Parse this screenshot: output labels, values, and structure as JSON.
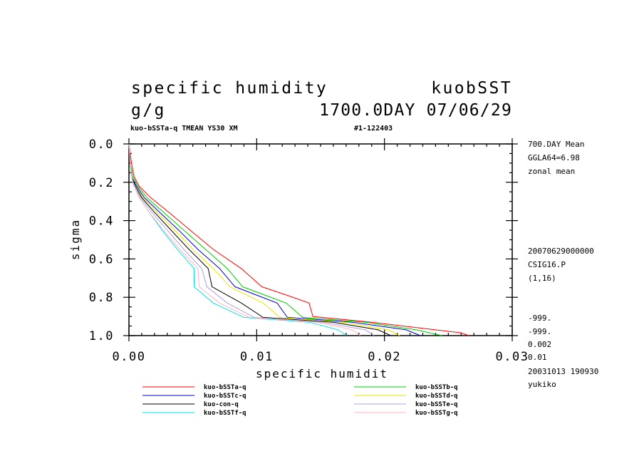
{
  "header": {
    "title_left": "specific humidity",
    "title_right": "kuobSST",
    "units": "g/g",
    "time_label": "1700.0DAY 07/06/29",
    "subtitle_left": "kuo-bSSTa-q TMEAN YS30 XM",
    "subtitle_right": "#1-122403"
  },
  "side_info": {
    "top": [
      "700.DAY Mean",
      "GGLA64=6.98",
      "zonal mean"
    ],
    "middle": [
      "20070629000000",
      "CSIG16.P",
      "(1,16)"
    ],
    "bottom": [
      "-999.",
      "-999.",
      "0.002",
      "0.01",
      "20031013 190930",
      "yukiko"
    ]
  },
  "chart_data": {
    "type": "line",
    "xlabel": "specific humidit",
    "ylabel": "sigma",
    "xlim": [
      0,
      0.03
    ],
    "ylim": [
      0,
      1.0
    ],
    "y_inverted": true,
    "x_ticks": [
      0,
      0.01,
      0.02,
      0.03
    ],
    "x_tick_labels": [
      "0.00",
      "0.01",
      "0.02",
      "0.03"
    ],
    "y_ticks": [
      0,
      0.2,
      0.4,
      0.6,
      0.8,
      1.0
    ],
    "y_tick_labels": [
      "0.0",
      "0.2",
      "0.4",
      "0.6",
      "0.8",
      "1.0"
    ],
    "legend_placement": "bottom",
    "series": [
      {
        "name": "kuo-bSSTa-q",
        "color": "#ff0000",
        "sigma": [
          0.0,
          0.1,
          0.17,
          0.22,
          0.28,
          0.35,
          0.45,
          0.55,
          0.65,
          0.745,
          0.79,
          0.83,
          0.9,
          0.93,
          0.97,
          0.985,
          1.0
        ],
        "q": [
          0.0,
          0.0002,
          0.0004,
          0.0008,
          0.0017,
          0.003,
          0.0048,
          0.0066,
          0.0088,
          0.0104,
          0.0124,
          0.0141,
          0.0144,
          0.019,
          0.024,
          0.026,
          0.0266
        ]
      },
      {
        "name": "kuo-bSSTb-q",
        "color": "#00cc00",
        "sigma": [
          0.0,
          0.1,
          0.17,
          0.22,
          0.28,
          0.35,
          0.45,
          0.55,
          0.65,
          0.745,
          0.83,
          0.905,
          0.93,
          0.97,
          1.0
        ],
        "q": [
          0.0,
          0.0001,
          0.0003,
          0.0007,
          0.0014,
          0.0026,
          0.0043,
          0.006,
          0.0077,
          0.0089,
          0.0123,
          0.0136,
          0.0185,
          0.0225,
          0.0245
        ]
      },
      {
        "name": "kuo-bSSTc-q",
        "color": "#0000cc",
        "sigma": [
          0.0,
          0.1,
          0.17,
          0.22,
          0.28,
          0.35,
          0.45,
          0.55,
          0.65,
          0.745,
          0.83,
          0.905,
          0.93,
          0.97,
          1.0
        ],
        "q": [
          0.0,
          0.0001,
          0.0002,
          0.0006,
          0.0012,
          0.0023,
          0.0039,
          0.0054,
          0.0071,
          0.0083,
          0.0116,
          0.0124,
          0.0175,
          0.0217,
          0.0228
        ]
      },
      {
        "name": "kuo-bSSTd-q",
        "color": "#e6e600",
        "sigma": [
          0.0,
          0.1,
          0.17,
          0.22,
          0.28,
          0.35,
          0.45,
          0.55,
          0.65,
          0.745,
          0.83,
          0.905,
          0.93,
          0.97,
          1.0
        ],
        "q": [
          0.0,
          0.0001,
          0.0002,
          0.0005,
          0.0011,
          0.0021,
          0.0036,
          0.005,
          0.0066,
          0.0079,
          0.0105,
          0.0118,
          0.0168,
          0.0203,
          0.0212
        ]
      },
      {
        "name": "kuo-con-q",
        "color": "#000000",
        "sigma": [
          0.0,
          0.1,
          0.17,
          0.22,
          0.28,
          0.35,
          0.45,
          0.55,
          0.65,
          0.745,
          0.83,
          0.905,
          0.93,
          0.97,
          1.0
        ],
        "q": [
          0.0,
          0.0001,
          0.0002,
          0.0005,
          0.001,
          0.0019,
          0.0033,
          0.0047,
          0.0062,
          0.0065,
          0.0088,
          0.0105,
          0.016,
          0.0195,
          0.0205
        ]
      },
      {
        "name": "kuo-bSSTe-q",
        "color": "#b39ddb",
        "sigma": [
          0.0,
          0.1,
          0.17,
          0.22,
          0.28,
          0.35,
          0.45,
          0.55,
          0.65,
          0.745,
          0.83,
          0.905,
          0.93,
          0.97,
          1.0
        ],
        "q": [
          0.0,
          0.0001,
          0.0002,
          0.0004,
          0.0009,
          0.0017,
          0.003,
          0.0043,
          0.0057,
          0.0061,
          0.0077,
          0.0098,
          0.0152,
          0.0185,
          0.0192
        ]
      },
      {
        "name": "kuo-bSSTf-q",
        "color": "#00e5e5",
        "sigma": [
          0.0,
          0.1,
          0.17,
          0.22,
          0.28,
          0.35,
          0.45,
          0.55,
          0.65,
          0.745,
          0.83,
          0.905,
          0.93,
          0.97,
          1.0
        ],
        "q": [
          0.0,
          0.0001,
          0.0002,
          0.0004,
          0.0008,
          0.0015,
          0.0026,
          0.0038,
          0.0051,
          0.0051,
          0.0066,
          0.009,
          0.0141,
          0.0164,
          0.017
        ]
      },
      {
        "name": "kuo-bSSTg-q",
        "color": "#ffb6c1",
        "sigma": [
          0.0,
          0.1,
          0.17,
          0.22,
          0.28,
          0.35,
          0.45,
          0.55,
          0.65,
          0.745,
          0.83,
          0.905,
          0.93,
          0.97,
          1.0
        ],
        "q": [
          0.0,
          0.0001,
          0.0002,
          0.0004,
          0.0008,
          0.0015,
          0.0027,
          0.004,
          0.0054,
          0.0055,
          0.0071,
          0.0094,
          0.0147,
          0.0175,
          0.0181
        ]
      }
    ]
  }
}
